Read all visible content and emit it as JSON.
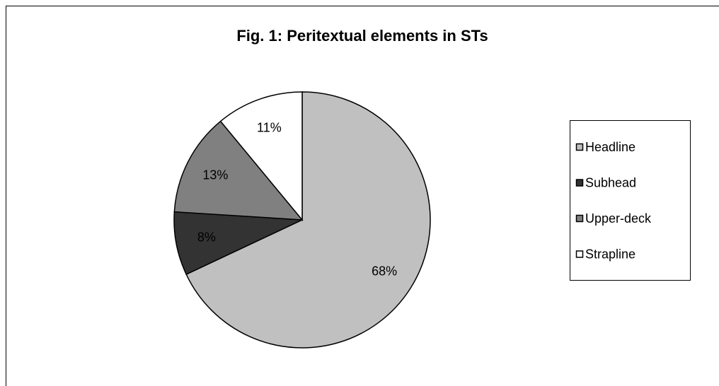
{
  "chart_data": {
    "type": "pie",
    "title": "Fig. 1: Peritextual elements in STs",
    "categories": [
      "Headline",
      "Subhead",
      "Upper-deck",
      "Strapline"
    ],
    "values": [
      68,
      8,
      13,
      11
    ],
    "value_labels": [
      "68%",
      "8%",
      "13%",
      "11%"
    ],
    "colors": [
      "#c0c0c0",
      "#333333",
      "#808080",
      "#ffffff"
    ],
    "legend": "right"
  }
}
